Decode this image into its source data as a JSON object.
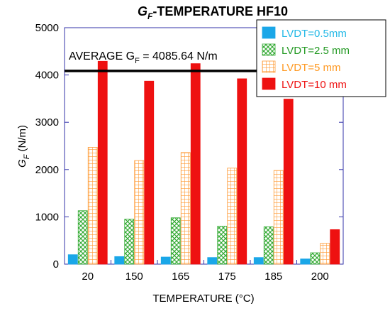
{
  "chart_data": {
    "type": "bar",
    "title_main": "G",
    "title_sub": "F",
    "title_rest": "-TEMPERATURE HF10",
    "xlabel": "TEMPERATURE (°C)",
    "ylabel_main": "G",
    "ylabel_sub": "F",
    "ylabel_rest": " (N/m)",
    "categories": [
      "20",
      "150",
      "165",
      "175",
      "185",
      "200"
    ],
    "ylim": [
      0,
      5000
    ],
    "yticks": [
      0,
      1000,
      2000,
      3000,
      4000,
      5000
    ],
    "grid": false,
    "legend_position": "top-right",
    "series": [
      {
        "name": "LVDT=0.5mm",
        "values": [
          200,
          160,
          150,
          140,
          140,
          110
        ],
        "color": "#1aa7e8",
        "text_color": "#22b8e6",
        "pattern": "solid"
      },
      {
        "name": "LVDT=2.5 mm",
        "values": [
          1130,
          950,
          980,
          800,
          790,
          240
        ],
        "color": "#33aa33",
        "text_color": "#229922",
        "pattern": "crosshatch"
      },
      {
        "name": "LVDT=5 mm",
        "values": [
          2470,
          2190,
          2360,
          2030,
          1980,
          440
        ],
        "color": "#ff9933",
        "text_color": "#ff9922",
        "pattern": "grid"
      },
      {
        "name": "LVDT=10 mm",
        "values": [
          4290,
          3870,
          4240,
          3920,
          3490,
          730
        ],
        "color": "#ee1111",
        "text_color": "#ee1111",
        "pattern": "solid"
      }
    ],
    "reference_line": {
      "value": 4085.64,
      "label_prefix": "AVERAGE G",
      "label_sub": "F",
      "label_suffix": " = 4085.64 N/m"
    }
  }
}
